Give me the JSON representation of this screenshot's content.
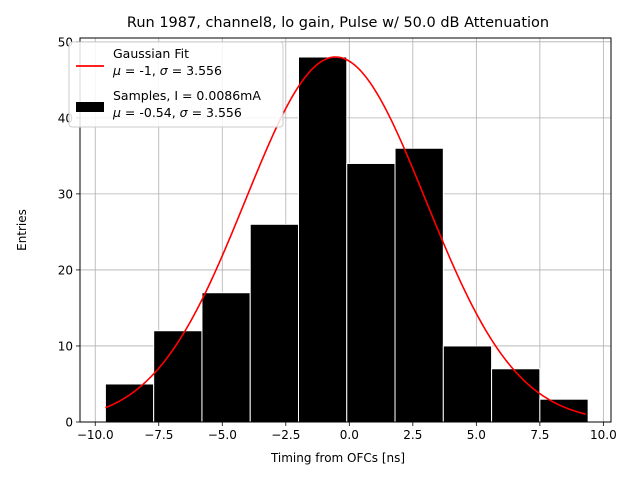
{
  "chart_data": {
    "type": "bar",
    "title": "Run 1987, channel8, lo gain, Pulse w/ 50.0 dB Attenuation",
    "xlabel": "Timing from OFCs [ns]",
    "ylabel": "Entries",
    "xlim": [
      -10.6,
      10.3
    ],
    "ylim": [
      0,
      50.5
    ],
    "xticks": [
      -10.0,
      -7.5,
      -5.0,
      -2.5,
      0.0,
      2.5,
      5.0,
      7.5,
      10.0
    ],
    "xtick_labels": [
      "−10.0",
      "−7.5",
      "−5.0",
      "−2.5",
      "0.0",
      "2.5",
      "5.0",
      "7.5",
      "10.0"
    ],
    "yticks": [
      0,
      10,
      20,
      30,
      40,
      50
    ],
    "ytick_labels": [
      "0",
      "10",
      "20",
      "30",
      "40",
      "50"
    ],
    "grid": true,
    "legend_position": "top-left",
    "histogram": {
      "bin_edges": [
        -9.6,
        -7.7,
        -5.8,
        -3.9,
        -2.0,
        -0.1,
        1.8,
        3.7,
        5.6,
        7.5,
        9.4
      ],
      "counts": [
        5,
        12,
        17,
        26,
        48,
        34,
        36,
        10,
        7,
        3
      ],
      "color": "#000000",
      "edge_color": "#ffffff"
    },
    "fit": {
      "mu": -0.54,
      "sigma": 3.556,
      "amplitude": 48,
      "x_range": [
        -9.6,
        9.3
      ],
      "color": "#ff0000"
    },
    "legend": [
      {
        "kind": "line",
        "color": "#ff0000",
        "line1": "Gaussian Fit",
        "line2_parts": [
          {
            "t": "μ",
            "i": true
          },
          {
            "t": " = -1, "
          },
          {
            "t": "σ",
            "i": true
          },
          {
            "t": " = 3.556"
          }
        ]
      },
      {
        "kind": "patch",
        "color": "#000000",
        "line1": "Samples, I = 0.0086mA",
        "line2_parts": [
          {
            "t": "μ",
            "i": true
          },
          {
            "t": " = -0.54, "
          },
          {
            "t": "σ",
            "i": true
          },
          {
            "t": " = 3.556"
          }
        ]
      }
    ]
  }
}
